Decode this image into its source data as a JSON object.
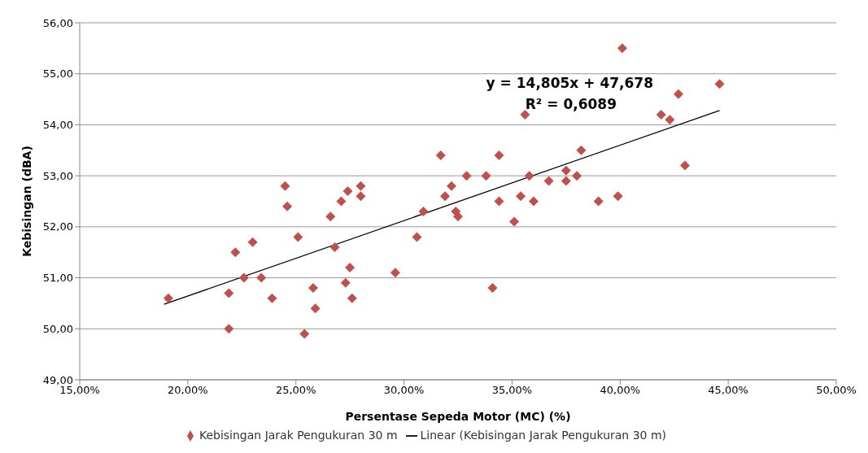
{
  "chart_data": {
    "type": "scatter",
    "xlabel": "Persentase Sepeda Motor (MC) (%)",
    "ylabel": "Kebisingan (dBA)",
    "annotations": [
      "y = 14,805x + 47,678",
      "R² = 0,6089"
    ],
    "xlim": [
      0.15,
      0.5
    ],
    "xticks": [
      {
        "value": 0.15,
        "label": "15,00%"
      },
      {
        "value": 0.2,
        "label": "20,00%"
      },
      {
        "value": 0.25,
        "label": "25,00%"
      },
      {
        "value": 0.3,
        "label": "30,00%"
      },
      {
        "value": 0.35,
        "label": "35,00%"
      },
      {
        "value": 0.4,
        "label": "40,00%"
      },
      {
        "value": 0.45,
        "label": "45,00%"
      },
      {
        "value": 0.5,
        "label": "50,00%"
      }
    ],
    "ylim": [
      49,
      56
    ],
    "yticks": [
      {
        "value": 49,
        "label": "49,00"
      },
      {
        "value": 50,
        "label": "50,00"
      },
      {
        "value": 51,
        "label": "51,00"
      },
      {
        "value": 52,
        "label": "52,00"
      },
      {
        "value": 53,
        "label": "53,00"
      },
      {
        "value": 54,
        "label": "54,00"
      },
      {
        "value": 55,
        "label": "55,00"
      },
      {
        "value": 56,
        "label": "56,00"
      }
    ],
    "grid": "y",
    "legend": "bottom",
    "marker": "diamond",
    "series": [
      {
        "name": "Kebisingan Jarak Pengukuran 30 m",
        "color": "#c0504d",
        "x": [
          0.191,
          0.219,
          0.219,
          0.222,
          0.226,
          0.23,
          0.234,
          0.239,
          0.245,
          0.246,
          0.251,
          0.254,
          0.258,
          0.259,
          0.266,
          0.268,
          0.271,
          0.273,
          0.274,
          0.275,
          0.276,
          0.28,
          0.28,
          0.296,
          0.306,
          0.309,
          0.317,
          0.319,
          0.322,
          0.324,
          0.325,
          0.329,
          0.338,
          0.341,
          0.344,
          0.344,
          0.351,
          0.354,
          0.356,
          0.358,
          0.36,
          0.367,
          0.375,
          0.375,
          0.38,
          0.382,
          0.39,
          0.399,
          0.401,
          0.419,
          0.423,
          0.427,
          0.43,
          0.446
        ],
        "values": [
          50.6,
          50.7,
          50.0,
          51.5,
          51.0,
          51.7,
          51.0,
          50.6,
          52.8,
          52.4,
          51.8,
          49.9,
          50.8,
          50.4,
          52.2,
          51.6,
          52.5,
          50.9,
          52.7,
          51.2,
          50.6,
          52.8,
          52.6,
          51.1,
          51.8,
          52.3,
          53.4,
          52.6,
          52.8,
          52.3,
          52.2,
          53.0,
          53.0,
          50.8,
          52.5,
          53.4,
          52.1,
          52.6,
          54.2,
          53.0,
          52.5,
          52.9,
          53.1,
          52.9,
          53.0,
          53.5,
          52.5,
          52.6,
          55.5,
          54.2,
          54.1,
          54.6,
          53.2,
          54.8
        ]
      },
      {
        "name": "Linear (Kebisingan Jarak Pengukuran 30 m)",
        "type": "line",
        "color": "#000000",
        "marker": "none",
        "x": [
          0.189,
          0.446
        ],
        "values": [
          50.48,
          54.28
        ]
      }
    ]
  }
}
